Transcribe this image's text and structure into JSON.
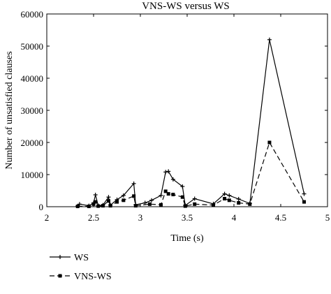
{
  "chart_data": {
    "type": "line",
    "title": "VNS-WS versus WS",
    "xlabel": "Time (s)",
    "ylabel": "Number of unsatisfied clauses",
    "xlim": [
      2,
      5
    ],
    "ylim": [
      0,
      60000
    ],
    "xticks": [
      2,
      2.5,
      3,
      3.5,
      4,
      4.5,
      5
    ],
    "xtick_labels": [
      "2",
      "2.5",
      "3",
      "3.5",
      "4",
      "4.5",
      "5"
    ],
    "yticks": [
      0,
      10000,
      20000,
      30000,
      40000,
      50000,
      60000
    ],
    "ytick_labels": [
      "0",
      "10000",
      "20000",
      "30000",
      "40000",
      "50000",
      "60000"
    ],
    "grid": false,
    "legend_position": "below plot, left",
    "series": [
      {
        "name": "WS",
        "color": "#000000",
        "line_style": "solid",
        "marker": "plus",
        "points": [
          [
            2.33,
            200
          ],
          [
            2.35,
            800
          ],
          [
            2.45,
            300
          ],
          [
            2.5,
            1200
          ],
          [
            2.52,
            3700
          ],
          [
            2.55,
            300
          ],
          [
            2.6,
            500
          ],
          [
            2.66,
            3000
          ],
          [
            2.68,
            500
          ],
          [
            2.75,
            2200
          ],
          [
            2.82,
            3500
          ],
          [
            2.93,
            7200
          ],
          [
            2.95,
            600
          ],
          [
            3.05,
            1200
          ],
          [
            3.12,
            2000
          ],
          [
            3.22,
            3500
          ],
          [
            3.27,
            10800
          ],
          [
            3.3,
            11000
          ],
          [
            3.35,
            8500
          ],
          [
            3.45,
            6300
          ],
          [
            3.48,
            400
          ],
          [
            3.58,
            2500
          ],
          [
            3.78,
            900
          ],
          [
            3.9,
            4000
          ],
          [
            3.95,
            3500
          ],
          [
            4.05,
            2400
          ],
          [
            4.17,
            1000
          ],
          [
            4.38,
            52000
          ],
          [
            4.75,
            4000
          ]
        ]
      },
      {
        "name": "VNS-WS",
        "color": "#000000",
        "line_style": "dashed",
        "marker": "square",
        "points": [
          [
            2.33,
            100
          ],
          [
            2.45,
            100
          ],
          [
            2.5,
            800
          ],
          [
            2.52,
            1500
          ],
          [
            2.55,
            200
          ],
          [
            2.6,
            300
          ],
          [
            2.66,
            1800
          ],
          [
            2.68,
            300
          ],
          [
            2.75,
            1500
          ],
          [
            2.82,
            2000
          ],
          [
            2.93,
            3300
          ],
          [
            2.95,
            300
          ],
          [
            3.1,
            800
          ],
          [
            3.22,
            600
          ],
          [
            3.27,
            4800
          ],
          [
            3.3,
            4000
          ],
          [
            3.35,
            3800
          ],
          [
            3.45,
            3000
          ],
          [
            3.48,
            200
          ],
          [
            3.58,
            800
          ],
          [
            3.78,
            500
          ],
          [
            3.9,
            2500
          ],
          [
            3.95,
            2000
          ],
          [
            4.05,
            1200
          ],
          [
            4.17,
            800
          ],
          [
            4.38,
            20000
          ],
          [
            4.75,
            1500
          ]
        ]
      }
    ]
  }
}
